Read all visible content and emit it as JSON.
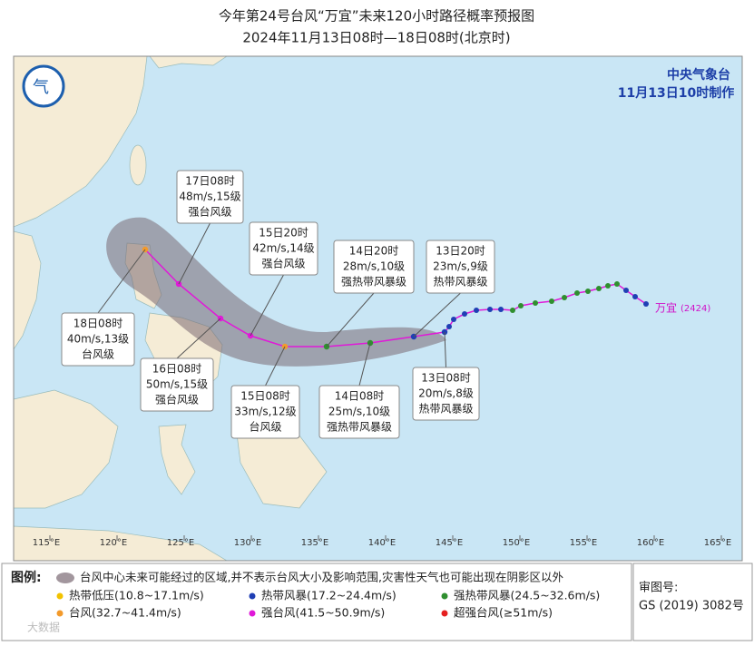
{
  "header": {
    "title": "今年第24号台风“万宜”未来120小时路径概率预报图",
    "subtitle": "2024年11月13日08时—18日08时(北京时)"
  },
  "agency": {
    "name": "中央气象台",
    "issued": "11月13日10时制作"
  },
  "map": {
    "lon_labels": [
      "115°E",
      "120°E",
      "125°E",
      "130°E",
      "135°E",
      "140°E",
      "145°E",
      "150°E",
      "155°E",
      "160°E",
      "165°E"
    ],
    "typhoon_name": "万宜",
    "typhoon_code": "(2424)",
    "callouts": [
      {
        "time": "17日08时",
        "wind": "48m/s,15级",
        "level": "强台风级"
      },
      {
        "time": "15日20时",
        "wind": "42m/s,14级",
        "level": "强台风级"
      },
      {
        "time": "14日20时",
        "wind": "28m/s,10级",
        "level": "强热带风暴级"
      },
      {
        "time": "13日20时",
        "wind": "23m/s,9级",
        "level": "热带风暴级"
      },
      {
        "time": "18日08时",
        "wind": "40m/s,13级",
        "level": "台风级"
      },
      {
        "time": "16日08时",
        "wind": "50m/s,15级",
        "level": "强台风级"
      },
      {
        "time": "15日08时",
        "wind": "33m/s,12级",
        "level": "台风级"
      },
      {
        "time": "14日08时",
        "wind": "25m/s,10级",
        "level": "强热带风暴级"
      },
      {
        "time": "13日08时",
        "wind": "20m/s,8级",
        "level": "热带风暴级"
      }
    ]
  },
  "legend": {
    "title": "图例:",
    "cone": "台风中心未来可能经过的区域,并不表示台风大小及影响范围,灾害性天气也可能出现在阴影区以外",
    "items": [
      {
        "label": "热带低压(10.8~17.1m/s)",
        "color": "#f2c200"
      },
      {
        "label": "热带风暴(17.2~24.4m/s)",
        "color": "#1f3fb4"
      },
      {
        "label": "强热带风暴(24.5~32.6m/s)",
        "color": "#2f8f2f"
      },
      {
        "label": "台风(32.7~41.4m/s)",
        "color": "#f39a2b"
      },
      {
        "label": "强台风(41.5~50.9m/s)",
        "color": "#e019d8"
      },
      {
        "label": "超强台风(≥51m/s)",
        "color": "#e52020"
      }
    ]
  },
  "approval": {
    "label": "审图号:",
    "number": "GS (2019) 3082号"
  },
  "watermark": "大数据"
}
